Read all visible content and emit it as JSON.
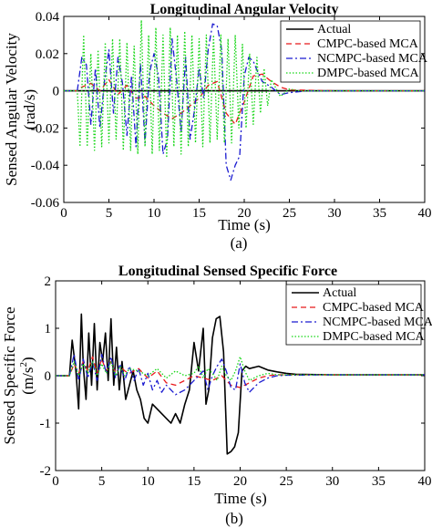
{
  "chart_data": [
    {
      "type": "line",
      "title": "Longitudinal Angular Velocity",
      "xlabel": "Time (s)",
      "ylabel": "Sensed Angular Velocity",
      "ylabel_unit": "(rad/s)",
      "caption": "(a)",
      "xlim": [
        0,
        40
      ],
      "ylim": [
        -0.06,
        0.04
      ],
      "xticks": [
        0,
        5,
        10,
        15,
        20,
        25,
        30,
        35,
        40
      ],
      "yticks": [
        0.04,
        0.02,
        0,
        -0.02,
        -0.04,
        -0.06
      ],
      "ytick_labels": [
        "0.04",
        "0.02",
        "0",
        "-0.02",
        "-0.04",
        "-0.06"
      ],
      "legend": "top-right",
      "series": [
        {
          "name": "Actual",
          "color": "#000000",
          "dash": "solid",
          "x": [
            0,
            40
          ],
          "y": [
            0,
            0
          ]
        },
        {
          "name": "CMPC-based MCA",
          "color": "#e8191b",
          "dash": "dashed",
          "x": [
            0,
            1.5,
            2,
            3,
            4,
            5,
            6,
            7,
            8,
            9,
            10,
            11,
            12,
            13,
            14,
            15,
            16,
            17,
            18,
            19,
            20,
            21,
            22,
            23,
            24,
            25,
            30,
            40
          ],
          "y": [
            0,
            0,
            0.002,
            0.004,
            0,
            0.006,
            -0.002,
            0.003,
            -0.004,
            -0.003,
            -0.008,
            -0.012,
            -0.015,
            -0.012,
            -0.008,
            -0.004,
            0.003,
            0.005,
            -0.012,
            -0.018,
            -0.006,
            0.008,
            0.009,
            0.005,
            0.002,
            0.0005,
            0,
            0
          ]
        },
        {
          "name": "NCMPC-based MCA",
          "color": "#1a1ad0",
          "dash": "dashdot",
          "x": [
            0,
            1.5,
            2,
            2.5,
            3,
            3.5,
            4,
            4.5,
            5,
            5.5,
            6,
            6.5,
            7,
            7.5,
            8,
            8.5,
            9,
            9.5,
            10,
            10.5,
            11,
            11.5,
            12,
            12.5,
            13,
            13.5,
            14,
            14.5,
            15,
            15.5,
            16,
            16.5,
            17,
            17.5,
            18,
            18.5,
            19,
            19.5,
            20,
            20.5,
            21,
            21.5,
            22,
            23,
            24,
            25,
            27,
            40
          ],
          "y": [
            0,
            0,
            0.018,
            0.014,
            -0.018,
            0.012,
            -0.02,
            0.005,
            0.022,
            -0.012,
            0.018,
            0.004,
            -0.024,
            0.008,
            -0.03,
            0.015,
            -0.028,
            0.01,
            0.02,
            0.008,
            -0.034,
            -0.026,
            0.028,
            0.006,
            -0.022,
            0.018,
            -0.026,
            -0.01,
            0.012,
            -0.004,
            0.022,
            0.036,
            0.035,
            0.022,
            -0.04,
            -0.048,
            -0.04,
            -0.035,
            0.008,
            0.018,
            0.016,
            0.01,
            0.005,
            0.002,
            -0.002,
            -0.001,
            0,
            0
          ]
        },
        {
          "name": "DMPC-based MCA",
          "color": "#16d616",
          "dash": "dotted",
          "x": [
            0,
            1.5,
            1.8,
            2.2,
            2.6,
            3.0,
            3.4,
            3.8,
            4.2,
            4.6,
            5.0,
            5.4,
            5.8,
            6.2,
            6.6,
            7.0,
            7.4,
            7.8,
            8.2,
            8.6,
            9.0,
            9.4,
            9.8,
            10.2,
            10.6,
            11.0,
            11.4,
            11.8,
            12.2,
            12.6,
            13.0,
            13.4,
            13.8,
            14.2,
            14.6,
            15.0,
            15.4,
            15.8,
            16.2,
            16.6,
            17.0,
            17.4,
            17.8,
            18.2,
            18.6,
            19.0,
            19.4,
            19.8,
            20.2,
            20.6,
            21.0,
            21.4,
            21.8,
            22.2,
            22.6,
            23.0,
            24,
            25,
            26,
            40
          ],
          "y": [
            0,
            0,
            -0.03,
            0.03,
            -0.03,
            0.02,
            -0.032,
            0.022,
            -0.03,
            0.026,
            -0.028,
            0.028,
            -0.026,
            0.028,
            -0.032,
            0.026,
            -0.032,
            0.024,
            -0.034,
            0.038,
            -0.03,
            0.03,
            -0.034,
            0.034,
            -0.032,
            0.03,
            -0.036,
            0.034,
            -0.03,
            0.03,
            -0.034,
            0.032,
            -0.03,
            0.03,
            -0.028,
            0.028,
            -0.03,
            0.03,
            -0.028,
            0.03,
            -0.026,
            0.03,
            -0.028,
            0.028,
            -0.028,
            0.03,
            -0.02,
            0.025,
            -0.02,
            0.02,
            -0.018,
            0.018,
            -0.012,
            0.012,
            -0.008,
            0.006,
            -0.003,
            0.001,
            0,
            0
          ]
        }
      ]
    },
    {
      "type": "line",
      "title": "Longitudinal Sensed Specific Force",
      "xlabel": "Time (s)",
      "ylabel": "Sensed Specific Force",
      "ylabel_unit": "(m/s",
      "ylabel_unit_sup": "2",
      "ylabel_unit_close": ")",
      "caption": "(b)",
      "xlim": [
        0,
        40
      ],
      "ylim": [
        -2,
        2
      ],
      "xticks": [
        0,
        5,
        10,
        15,
        20,
        25,
        30,
        35,
        40
      ],
      "yticks": [
        2,
        1,
        0,
        -1,
        -2
      ],
      "ytick_labels": [
        "2",
        "1",
        "0",
        "-1",
        "-2"
      ],
      "legend": "top-right",
      "series": [
        {
          "name": "Actual",
          "color": "#000000",
          "dash": "solid",
          "x": [
            0,
            1.5,
            1.8,
            2.2,
            2.5,
            2.8,
            3.0,
            3.3,
            3.6,
            3.9,
            4.2,
            4.5,
            4.8,
            5.1,
            5.4,
            5.7,
            6.0,
            6.3,
            6.6,
            6.9,
            7.2,
            7.6,
            8.0,
            8.4,
            8.8,
            9.2,
            9.6,
            10.0,
            10.5,
            11,
            11.5,
            12,
            12.5,
            13,
            13.5,
            14,
            14.5,
            15,
            15.5,
            16,
            16.3,
            16.6,
            17.0,
            17.4,
            17.8,
            18.2,
            18.6,
            19.0,
            19.4,
            19.8,
            20.2,
            20.6,
            21.0,
            22,
            23,
            24,
            25,
            26,
            30,
            40
          ],
          "y": [
            0,
            0,
            0.75,
            0.1,
            -0.7,
            1.3,
            0.2,
            -0.5,
            0.9,
            -0.2,
            1.1,
            -0.3,
            0.7,
            0.3,
            0.9,
            -0.1,
            1.2,
            -0.2,
            0.6,
            -0.3,
            0.3,
            -0.5,
            -0.2,
            0.1,
            -0.3,
            -0.5,
            -0.9,
            -1.0,
            -0.6,
            -0.7,
            -0.8,
            -0.9,
            -1.0,
            -0.8,
            -1.0,
            -0.6,
            -0.3,
            0.7,
            0.1,
            1.0,
            -0.6,
            -0.3,
            0.8,
            1.2,
            1.25,
            0.5,
            -1.65,
            -1.6,
            -1.5,
            -1.2,
            0.1,
            0.2,
            0.15,
            0.2,
            0.12,
            0.08,
            0.05,
            0.03,
            0.02,
            0.02
          ]
        },
        {
          "name": "CMPC-based MCA",
          "color": "#e8191b",
          "dash": "dashed",
          "x": [
            0,
            1.5,
            2,
            2.5,
            3,
            3.5,
            4,
            4.5,
            5,
            5.5,
            6,
            6.5,
            7,
            7.5,
            8,
            9,
            10,
            11,
            12,
            13,
            14,
            15,
            16,
            17,
            18,
            18.5,
            19,
            20,
            21,
            22,
            23,
            24,
            25,
            30,
            40
          ],
          "y": [
            0,
            0,
            0.25,
            0.05,
            0.3,
            0.1,
            0.4,
            0.05,
            0.35,
            0.1,
            0.3,
            0.05,
            0.2,
            0.1,
            0.05,
            0.15,
            -0.05,
            0.1,
            -0.15,
            -0.2,
            -0.1,
            0.0,
            -0.05,
            -0.1,
            0.0,
            -0.1,
            -0.2,
            -0.25,
            -0.15,
            -0.05,
            0.0,
            0.02,
            0.02,
            0.02,
            0.02
          ]
        },
        {
          "name": "NCMPC-based MCA",
          "color": "#1a1ad0",
          "dash": "dashdot",
          "x": [
            0,
            1.5,
            2,
            2.5,
            3,
            3.5,
            4,
            4.5,
            5,
            5.5,
            6,
            6.5,
            7,
            7.5,
            8,
            8.5,
            9,
            9.5,
            10,
            10.5,
            11,
            11.5,
            12,
            13,
            14,
            15,
            16,
            16.5,
            17,
            17.5,
            18,
            18.5,
            19,
            19.5,
            20,
            20.5,
            21,
            22,
            23,
            24,
            25,
            30,
            40
          ],
          "y": [
            0,
            0,
            0.45,
            -0.1,
            0.35,
            -0.05,
            0.3,
            -0.1,
            0.45,
            0.05,
            0.4,
            -0.05,
            0.25,
            -0.1,
            0.2,
            -0.1,
            0.15,
            -0.2,
            0.05,
            -0.3,
            -0.1,
            -0.35,
            -0.2,
            -0.4,
            -0.3,
            -0.1,
            0.1,
            -0.3,
            0.0,
            0.2,
            0.35,
            0.1,
            -0.25,
            -0.3,
            0.25,
            -0.15,
            -0.35,
            -0.15,
            -0.05,
            0.0,
            0.01,
            0.02,
            0.02
          ]
        },
        {
          "name": "DMPC-based MCA",
          "color": "#16d616",
          "dash": "dotted",
          "x": [
            0,
            1.5,
            2,
            2.5,
            3,
            3.5,
            4,
            4.5,
            5,
            5.5,
            6,
            6.5,
            7,
            7.5,
            8,
            9,
            10,
            11,
            12,
            13,
            14,
            15,
            15.5,
            16,
            16.5,
            17,
            17.5,
            18,
            18.5,
            19,
            19.5,
            20,
            20.5,
            21,
            22,
            23,
            24,
            25,
            30,
            40
          ],
          "y": [
            0,
            0,
            0.3,
            0.0,
            0.25,
            0.05,
            0.3,
            0.0,
            0.25,
            0.05,
            0.3,
            0.0,
            0.2,
            0.0,
            0.15,
            0.1,
            0.0,
            0.15,
            -0.05,
            0.1,
            0.0,
            0.05,
            0.2,
            -0.05,
            0.15,
            0.05,
            -0.1,
            0.2,
            0.0,
            -0.1,
            0.1,
            0.4,
            0.1,
            -0.1,
            0.0,
            0.05,
            0.02,
            0.02,
            0.02,
            0.02
          ]
        }
      ]
    }
  ]
}
